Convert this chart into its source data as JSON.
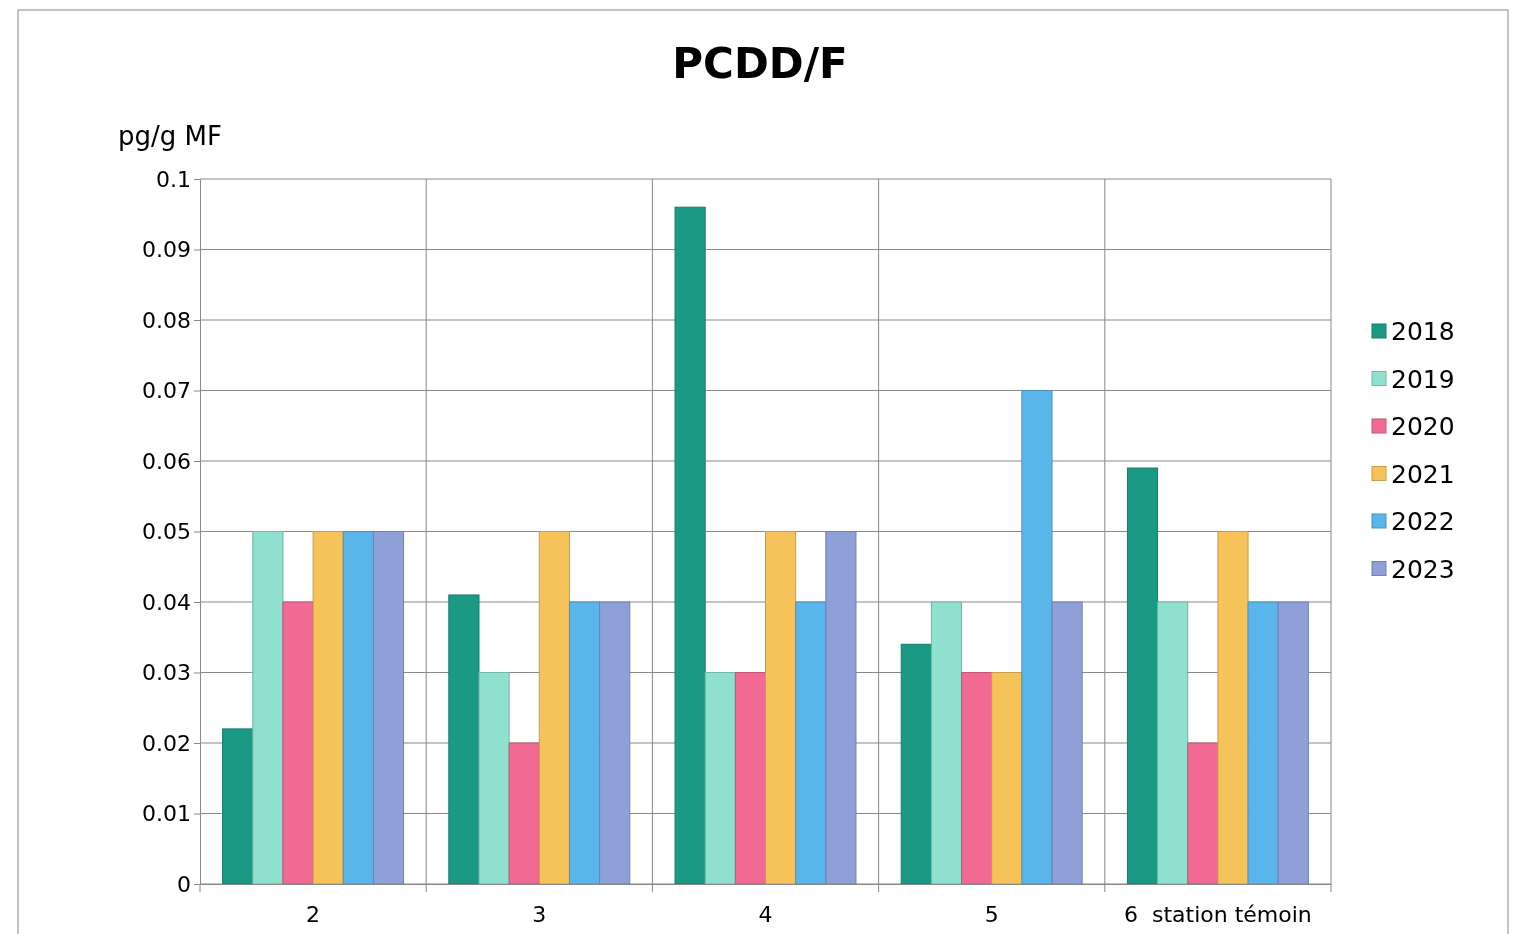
{
  "chart_data": {
    "type": "bar",
    "title": "PCDD/F",
    "ylabel": "pg/g MF",
    "categories": [
      "2",
      "3",
      "4",
      "5",
      "6  station témoin"
    ],
    "series": [
      {
        "name": "2018",
        "color": "#1a9a85",
        "values": [
          0.022,
          0.041,
          0.096,
          0.034,
          0.059
        ]
      },
      {
        "name": "2019",
        "color": "#8fe0cf",
        "values": [
          0.05,
          0.03,
          0.03,
          0.04,
          0.04
        ]
      },
      {
        "name": "2020",
        "color": "#f06a93",
        "values": [
          0.04,
          0.02,
          0.03,
          0.03,
          0.02
        ]
      },
      {
        "name": "2021",
        "color": "#f6c35a",
        "values": [
          0.05,
          0.05,
          0.05,
          0.03,
          0.05
        ]
      },
      {
        "name": "2022",
        "color": "#5ab6ea",
        "values": [
          0.05,
          0.04,
          0.04,
          0.07,
          0.04
        ]
      },
      {
        "name": "2023",
        "color": "#8f9fd8",
        "values": [
          0.05,
          0.04,
          0.05,
          0.04,
          0.04
        ]
      }
    ],
    "ylim": [
      0,
      0.1
    ],
    "yticks": [
      0,
      0.01,
      0.02,
      0.03,
      0.04,
      0.05,
      0.06,
      0.07,
      0.08,
      0.09,
      0.1
    ],
    "grid": true,
    "legend": "right"
  }
}
